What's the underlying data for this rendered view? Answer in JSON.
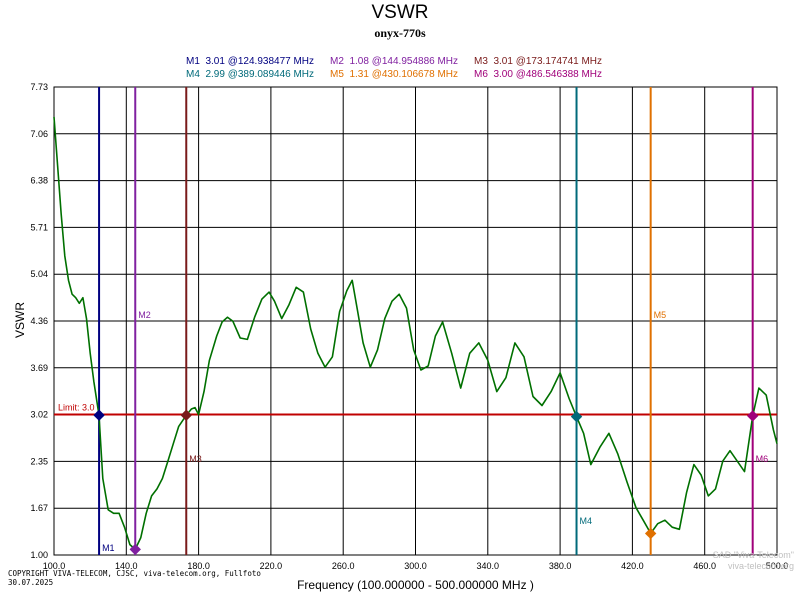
{
  "header": {
    "title": "VSWR",
    "subtitle": "onyx-770s"
  },
  "legend": [
    {
      "name": "M1",
      "value": "3.01",
      "freq": "@124.938477 MHz",
      "color": "#000080"
    },
    {
      "name": "M2",
      "value": "1.08",
      "freq": "@144.954886 MHz",
      "color": "#8020a0"
    },
    {
      "name": "M3",
      "value": "3.01",
      "freq": "@173.174741 MHz",
      "color": "#7a1a1a"
    },
    {
      "name": "M4",
      "value": "2.99",
      "freq": "@389.089446 MHz",
      "color": "#006a7a"
    },
    {
      "name": "M5",
      "value": "1.31",
      "freq": "@430.106678 MHz",
      "color": "#e07000"
    },
    {
      "name": "M6",
      "value": "3.00",
      "freq": "@486.546388 MHz",
      "color": "#a0007a"
    }
  ],
  "footer": {
    "copyright_line1": "COPYRIGHT VIVA-TELECOM, CJSC, viva-telecom.org, Fullfoto",
    "copyright_line2": "30.07.2025",
    "watermark_line1": "SAD \"Viva-Telecom\"",
    "watermark_line2": "viva-telecom.org"
  },
  "chart_data": {
    "type": "line",
    "title": "VSWR",
    "subtitle": "onyx-770s",
    "xlabel": "Frequency (100.000000 - 500.000000 MHz )",
    "ylabel": "VSWR",
    "xlim": [
      100,
      500
    ],
    "ylim": [
      1.0,
      7.73
    ],
    "x_ticks": [
      "100.0",
      "140.0",
      "180.0",
      "220.0",
      "260.0",
      "300.0",
      "340.0",
      "380.0",
      "420.0",
      "460.0",
      "500.0"
    ],
    "y_ticks": [
      "1.00",
      "1.67",
      "2.35",
      "3.02",
      "3.69",
      "4.36",
      "5.04",
      "5.71",
      "6.38",
      "7.06",
      "7.73"
    ],
    "limit": {
      "label": "Limit: 3.0",
      "value": 3.02,
      "color": "#c00000"
    },
    "series": [
      {
        "name": "VSWR",
        "color": "#007000",
        "x": [
          100,
          102,
          104,
          106,
          108,
          110,
          112,
          114,
          116,
          118,
          120,
          122,
          124.9,
          127,
          130,
          133,
          136,
          139,
          142,
          144.95,
          148,
          151,
          154,
          157,
          160,
          163,
          166,
          169,
          173.17,
          176,
          178,
          180,
          183,
          186,
          190,
          193,
          196,
          199,
          203,
          207,
          211,
          215,
          219,
          222,
          226,
          230,
          234,
          238,
          242,
          246,
          250,
          254,
          258,
          262,
          265,
          268,
          271,
          275,
          279,
          283,
          287,
          291,
          295,
          299,
          303,
          307,
          311,
          315,
          320,
          325,
          330,
          335,
          340,
          345,
          350,
          355,
          360,
          365,
          370,
          375,
          380,
          385,
          389.09,
          393,
          397,
          402,
          407,
          412,
          417,
          422,
          426,
          430.11,
          434,
          438,
          442,
          446,
          450,
          454,
          458,
          462,
          466,
          470,
          474,
          478,
          482,
          486.55,
          490,
          494,
          498,
          500
        ],
        "y": [
          7.3,
          6.6,
          5.9,
          5.3,
          4.95,
          4.75,
          4.7,
          4.62,
          4.7,
          4.4,
          3.9,
          3.5,
          3.01,
          2.1,
          1.65,
          1.6,
          1.6,
          1.4,
          1.15,
          1.08,
          1.25,
          1.6,
          1.85,
          1.95,
          2.1,
          2.35,
          2.6,
          2.85,
          3.01,
          3.1,
          3.12,
          3.02,
          3.35,
          3.8,
          4.15,
          4.35,
          4.42,
          4.36,
          4.12,
          4.1,
          4.42,
          4.68,
          4.78,
          4.65,
          4.4,
          4.6,
          4.85,
          4.78,
          4.25,
          3.9,
          3.7,
          3.85,
          4.5,
          4.8,
          4.95,
          4.5,
          4.05,
          3.7,
          3.95,
          4.4,
          4.65,
          4.75,
          4.55,
          3.95,
          3.66,
          3.72,
          4.15,
          4.35,
          3.9,
          3.4,
          3.9,
          4.05,
          3.8,
          3.35,
          3.55,
          4.05,
          3.85,
          3.28,
          3.15,
          3.35,
          3.62,
          3.25,
          2.99,
          2.75,
          2.3,
          2.55,
          2.75,
          2.45,
          2.05,
          1.68,
          1.5,
          1.31,
          1.45,
          1.5,
          1.4,
          1.37,
          1.9,
          2.3,
          2.15,
          1.85,
          1.95,
          2.35,
          2.5,
          2.35,
          2.2,
          3.0,
          3.4,
          3.3,
          2.8,
          2.6
        ]
      }
    ],
    "markers": [
      {
        "name": "M1",
        "x": 124.938477,
        "y": 3.01,
        "color": "#000080",
        "label_pos": "bottom"
      },
      {
        "name": "M2",
        "x": 144.954886,
        "y": 1.08,
        "color": "#8020a0",
        "label_pos": "top"
      },
      {
        "name": "M3",
        "x": 173.174741,
        "y": 3.01,
        "color": "#7a1a1a",
        "label_pos": "middle"
      },
      {
        "name": "M4",
        "x": 389.089446,
        "y": 2.99,
        "color": "#006a7a",
        "label_pos": "lower"
      },
      {
        "name": "M5",
        "x": 430.106678,
        "y": 1.31,
        "color": "#e07000",
        "label_pos": "top"
      },
      {
        "name": "M6",
        "x": 486.546388,
        "y": 3.0,
        "color": "#a0007a",
        "label_pos": "middle"
      }
    ]
  }
}
